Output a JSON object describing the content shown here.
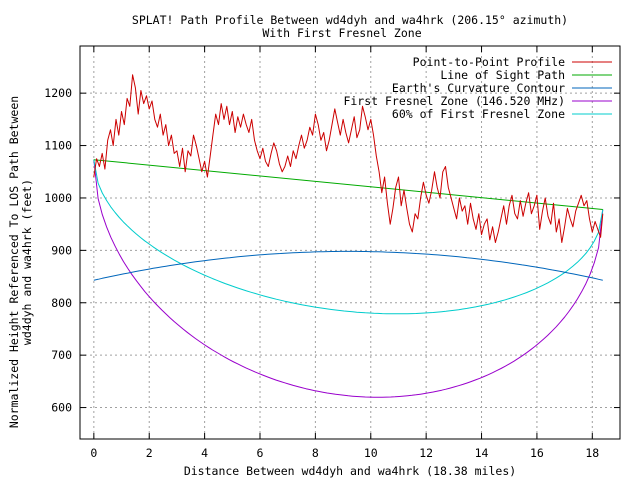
{
  "chart_data": {
    "type": "line",
    "title": "SPLAT! Path Profile Between wd4dyh and wa4hrk (206.15° azimuth)",
    "subtitle": "With First Fresnel Zone",
    "xlabel": "Distance Between wd4dyh and wa4hrk (18.38 miles)",
    "ylabel": [
      "Normalized Height Referenced To LOS Path Between",
      "wd4dyh and wa4hrk (feet)"
    ],
    "xlim": [
      -0.5,
      19
    ],
    "ylim": [
      540,
      1290
    ],
    "x_ticks": [
      0,
      2,
      4,
      6,
      8,
      10,
      12,
      14,
      16,
      18
    ],
    "y_ticks": [
      600,
      700,
      800,
      900,
      1000,
      1100,
      1200
    ],
    "grid": true,
    "legend_position": "top-right",
    "series": [
      {
        "name": "Point-to-Point Profile",
        "color": "#cc0000",
        "points": [
          [
            0,
            1040
          ],
          [
            0.1,
            1075
          ],
          [
            0.2,
            1060
          ],
          [
            0.3,
            1085
          ],
          [
            0.4,
            1055
          ],
          [
            0.5,
            1110
          ],
          [
            0.6,
            1130
          ],
          [
            0.7,
            1100
          ],
          [
            0.8,
            1150
          ],
          [
            0.9,
            1120
          ],
          [
            1.0,
            1165
          ],
          [
            1.1,
            1140
          ],
          [
            1.2,
            1190
          ],
          [
            1.3,
            1175
          ],
          [
            1.4,
            1235
          ],
          [
            1.5,
            1210
          ],
          [
            1.6,
            1160
          ],
          [
            1.7,
            1205
          ],
          [
            1.8,
            1180
          ],
          [
            1.9,
            1195
          ],
          [
            2.0,
            1170
          ],
          [
            2.1,
            1185
          ],
          [
            2.2,
            1150
          ],
          [
            2.3,
            1135
          ],
          [
            2.4,
            1160
          ],
          [
            2.5,
            1120
          ],
          [
            2.6,
            1140
          ],
          [
            2.7,
            1100
          ],
          [
            2.8,
            1120
          ],
          [
            2.9,
            1085
          ],
          [
            3.0,
            1090
          ],
          [
            3.1,
            1060
          ],
          [
            3.2,
            1095
          ],
          [
            3.3,
            1050
          ],
          [
            3.4,
            1090
          ],
          [
            3.5,
            1080
          ],
          [
            3.6,
            1120
          ],
          [
            3.7,
            1100
          ],
          [
            3.8,
            1075
          ],
          [
            3.9,
            1050
          ],
          [
            4.0,
            1070
          ],
          [
            4.1,
            1040
          ],
          [
            4.2,
            1080
          ],
          [
            4.3,
            1120
          ],
          [
            4.4,
            1160
          ],
          [
            4.5,
            1140
          ],
          [
            4.6,
            1180
          ],
          [
            4.7,
            1150
          ],
          [
            4.8,
            1175
          ],
          [
            4.9,
            1140
          ],
          [
            5.0,
            1165
          ],
          [
            5.1,
            1125
          ],
          [
            5.2,
            1155
          ],
          [
            5.3,
            1135
          ],
          [
            5.4,
            1160
          ],
          [
            5.5,
            1140
          ],
          [
            5.6,
            1125
          ],
          [
            5.7,
            1150
          ],
          [
            5.8,
            1110
          ],
          [
            5.9,
            1090
          ],
          [
            6.0,
            1075
          ],
          [
            6.1,
            1095
          ],
          [
            6.2,
            1070
          ],
          [
            6.3,
            1060
          ],
          [
            6.4,
            1085
          ],
          [
            6.5,
            1105
          ],
          [
            6.6,
            1090
          ],
          [
            6.7,
            1065
          ],
          [
            6.8,
            1050
          ],
          [
            6.9,
            1060
          ],
          [
            7.0,
            1080
          ],
          [
            7.1,
            1060
          ],
          [
            7.2,
            1090
          ],
          [
            7.3,
            1075
          ],
          [
            7.4,
            1100
          ],
          [
            7.5,
            1120
          ],
          [
            7.6,
            1095
          ],
          [
            7.7,
            1110
          ],
          [
            7.8,
            1135
          ],
          [
            7.9,
            1120
          ],
          [
            8.0,
            1160
          ],
          [
            8.1,
            1140
          ],
          [
            8.2,
            1110
          ],
          [
            8.3,
            1125
          ],
          [
            8.4,
            1090
          ],
          [
            8.5,
            1110
          ],
          [
            8.6,
            1140
          ],
          [
            8.7,
            1170
          ],
          [
            8.8,
            1145
          ],
          [
            8.9,
            1120
          ],
          [
            9.0,
            1150
          ],
          [
            9.1,
            1125
          ],
          [
            9.2,
            1105
          ],
          [
            9.3,
            1130
          ],
          [
            9.4,
            1155
          ],
          [
            9.5,
            1115
          ],
          [
            9.6,
            1130
          ],
          [
            9.7,
            1175
          ],
          [
            9.8,
            1155
          ],
          [
            9.9,
            1130
          ],
          [
            10.0,
            1150
          ],
          [
            10.1,
            1120
          ],
          [
            10.2,
            1080
          ],
          [
            10.3,
            1050
          ],
          [
            10.4,
            1010
          ],
          [
            10.5,
            1040
          ],
          [
            10.6,
            990
          ],
          [
            10.7,
            950
          ],
          [
            10.8,
            980
          ],
          [
            10.9,
            1020
          ],
          [
            11.0,
            1040
          ],
          [
            11.1,
            985
          ],
          [
            11.2,
            1015
          ],
          [
            11.3,
            980
          ],
          [
            11.4,
            950
          ],
          [
            11.5,
            935
          ],
          [
            11.6,
            970
          ],
          [
            11.7,
            960
          ],
          [
            11.8,
            1000
          ],
          [
            11.9,
            1030
          ],
          [
            12.0,
            1005
          ],
          [
            12.1,
            990
          ],
          [
            12.2,
            1015
          ],
          [
            12.3,
            1050
          ],
          [
            12.4,
            1020
          ],
          [
            12.5,
            1000
          ],
          [
            12.6,
            1050
          ],
          [
            12.7,
            1060
          ],
          [
            12.8,
            1020
          ],
          [
            12.9,
            1000
          ],
          [
            13.0,
            980
          ],
          [
            13.1,
            960
          ],
          [
            13.2,
            1000
          ],
          [
            13.3,
            975
          ],
          [
            13.4,
            985
          ],
          [
            13.5,
            950
          ],
          [
            13.6,
            990
          ],
          [
            13.7,
            960
          ],
          [
            13.8,
            940
          ],
          [
            13.9,
            970
          ],
          [
            14.0,
            930
          ],
          [
            14.1,
            950
          ],
          [
            14.2,
            960
          ],
          [
            14.3,
            920
          ],
          [
            14.4,
            945
          ],
          [
            14.5,
            915
          ],
          [
            14.6,
            935
          ],
          [
            14.7,
            960
          ],
          [
            14.8,
            985
          ],
          [
            14.9,
            950
          ],
          [
            15.0,
            985
          ],
          [
            15.1,
            1005
          ],
          [
            15.2,
            970
          ],
          [
            15.3,
            960
          ],
          [
            15.4,
            995
          ],
          [
            15.5,
            965
          ],
          [
            15.6,
            990
          ],
          [
            15.7,
            1010
          ],
          [
            15.8,
            970
          ],
          [
            15.9,
            985
          ],
          [
            16.0,
            1005
          ],
          [
            16.1,
            940
          ],
          [
            16.2,
            975
          ],
          [
            16.3,
            1000
          ],
          [
            16.4,
            965
          ],
          [
            16.5,
            950
          ],
          [
            16.6,
            990
          ],
          [
            16.7,
            935
          ],
          [
            16.8,
            960
          ],
          [
            16.9,
            915
          ],
          [
            17.0,
            945
          ],
          [
            17.1,
            980
          ],
          [
            17.2,
            960
          ],
          [
            17.3,
            945
          ],
          [
            17.4,
            975
          ],
          [
            17.5,
            990
          ],
          [
            17.6,
            1005
          ],
          [
            17.7,
            985
          ],
          [
            17.8,
            995
          ],
          [
            17.9,
            960
          ],
          [
            18.0,
            935
          ],
          [
            18.1,
            955
          ],
          [
            18.2,
            940
          ],
          [
            18.3,
            925
          ],
          [
            18.38,
            970
          ]
        ]
      },
      {
        "name": "Line of Sight Path",
        "color": "#00aa00",
        "points": [
          [
            0,
            1073
          ],
          [
            18.38,
            978
          ]
        ]
      },
      {
        "name": "Earth's Curvature Contour",
        "color": "#0066bb",
        "curve": "earth",
        "start": 843,
        "bulge": 55,
        "end": 843
      },
      {
        "name": "First Fresnel Zone (146.520 MHz)",
        "color": "#9900cc",
        "curve": "fresnel",
        "depth": 403
      },
      {
        "name": "60% of First Fresnel Zone",
        "color": "#00cccc",
        "curve": "fresnel",
        "depth": 242
      }
    ]
  }
}
